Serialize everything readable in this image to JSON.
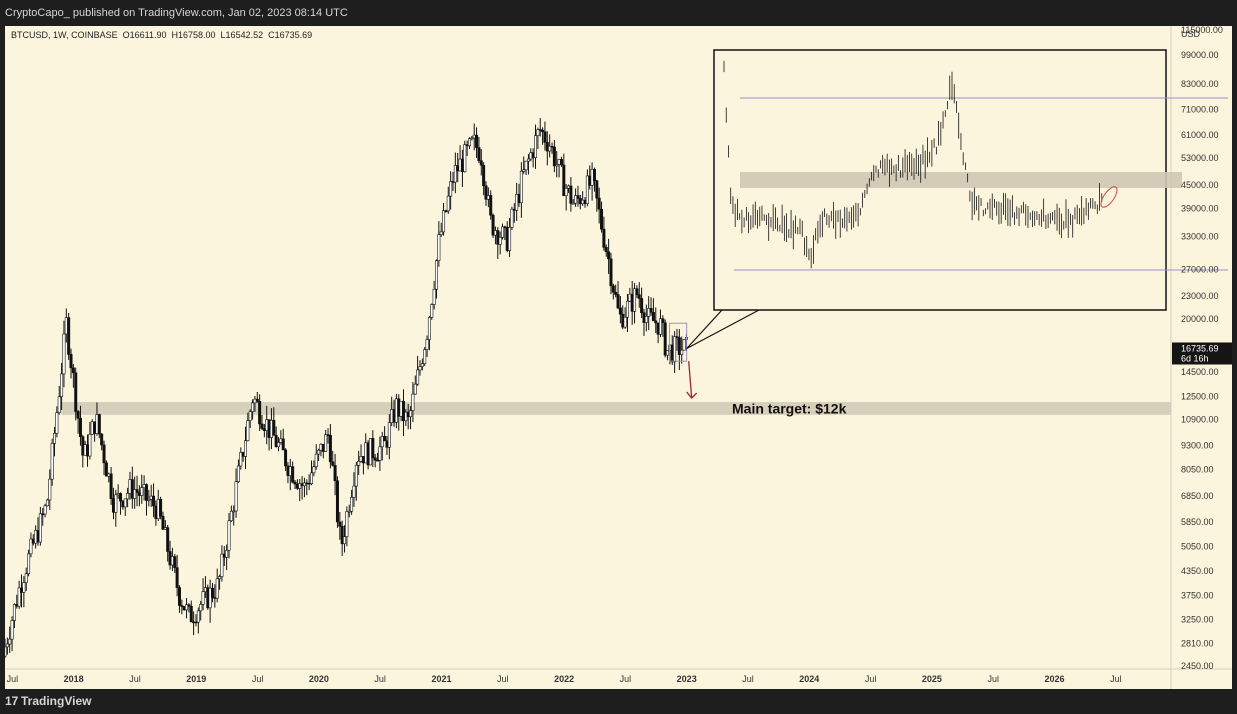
{
  "header": {
    "published_line": "CryptoCapo_ published on TradingView.com, Jan 02, 2023 08:14 UTC"
  },
  "footer": {
    "brand": "TradingView",
    "logo_mark": "17"
  },
  "colors": {
    "background": "#fcf5dd",
    "candle_up": "#ffffff",
    "candle_down": "#111111",
    "zone": "#cfc8b5",
    "arrow": "#9e2626",
    "range_line": "#9a93c6"
  },
  "chart_data": {
    "type": "candlestick",
    "symbol": "BTCUSD",
    "interval": "1W",
    "exchange": "COINBASE",
    "legend": {
      "open": "O16611.90",
      "high": "H16758.00",
      "low": "L16542.52",
      "close": "C16735.69"
    },
    "currency": "USD",
    "y_scale": "log",
    "ylim": [
      2450,
      115000
    ],
    "price_ticks": [
      115000,
      99000,
      83000,
      71000,
      61000,
      53000,
      45000,
      39000,
      33000,
      27000,
      23000,
      20000,
      14500,
      12500,
      10900,
      9300,
      8050,
      6850,
      5850,
      5050,
      4350,
      3750,
      3250,
      2810,
      2450
    ],
    "price_tick_labels": [
      "115000.00",
      "99000.00",
      "83000.00",
      "71000.00",
      "61000.00",
      "53000.00",
      "45000.00",
      "39000.00",
      "33000.00",
      "27000.00",
      "23000.00",
      "20000.00",
      "14500.00",
      "12500.00",
      "10900.00",
      "9300.00",
      "8050.00",
      "6850.00",
      "5850.00",
      "5050.00",
      "4350.00",
      "3750.00",
      "3250.00",
      "2810.00",
      "2450.00"
    ],
    "current_price": {
      "value": 16735.69,
      "label": "16735.69",
      "countdown": "6d 16h"
    },
    "time_labels": [
      "Jul",
      "2018",
      "Jul",
      "2019",
      "Jul",
      "2020",
      "Jul",
      "2021",
      "Jul",
      "2022",
      "Jul",
      "2023",
      "Jul",
      "2024",
      "Jul",
      "2025",
      "Jul",
      "2026",
      "Jul"
    ],
    "time_label_years": [
      2017.5,
      2018.0,
      2018.5,
      2019.0,
      2019.5,
      2020.0,
      2020.5,
      2021.0,
      2021.5,
      2022.0,
      2022.5,
      2023.0,
      2023.5,
      2024.0,
      2024.5,
      2025.0,
      2025.5,
      2026.0,
      2026.5
    ],
    "xlim_years": [
      2017.44,
      2026.95
    ],
    "key_points": [
      {
        "t": 2017.44,
        "p": 2600
      },
      {
        "t": 2017.6,
        "p": 4200
      },
      {
        "t": 2017.8,
        "p": 6500
      },
      {
        "t": 2017.96,
        "p": 19500
      },
      {
        "t": 2018.1,
        "p": 8500
      },
      {
        "t": 2018.2,
        "p": 11000
      },
      {
        "t": 2018.35,
        "p": 6600
      },
      {
        "t": 2018.5,
        "p": 7200
      },
      {
        "t": 2018.7,
        "p": 6400
      },
      {
        "t": 2018.88,
        "p": 3800
      },
      {
        "t": 2018.96,
        "p": 3300
      },
      {
        "t": 2019.2,
        "p": 4000
      },
      {
        "t": 2019.48,
        "p": 12500
      },
      {
        "t": 2019.6,
        "p": 10500
      },
      {
        "t": 2019.78,
        "p": 8200
      },
      {
        "t": 2019.9,
        "p": 7200
      },
      {
        "t": 2020.1,
        "p": 10000
      },
      {
        "t": 2020.2,
        "p": 5000
      },
      {
        "t": 2020.33,
        "p": 8800
      },
      {
        "t": 2020.55,
        "p": 9200
      },
      {
        "t": 2020.65,
        "p": 11800
      },
      {
        "t": 2020.75,
        "p": 10700
      },
      {
        "t": 2020.9,
        "p": 18500
      },
      {
        "t": 2021.0,
        "p": 32000
      },
      {
        "t": 2021.12,
        "p": 48000
      },
      {
        "t": 2021.28,
        "p": 58000
      },
      {
        "t": 2021.34,
        "p": 55000
      },
      {
        "t": 2021.42,
        "p": 36000
      },
      {
        "t": 2021.55,
        "p": 32000
      },
      {
        "t": 2021.68,
        "p": 47000
      },
      {
        "t": 2021.82,
        "p": 63000
      },
      {
        "t": 2021.9,
        "p": 58000
      },
      {
        "t": 2022.0,
        "p": 47000
      },
      {
        "t": 2022.1,
        "p": 40000
      },
      {
        "t": 2022.25,
        "p": 46000
      },
      {
        "t": 2022.38,
        "p": 29000
      },
      {
        "t": 2022.47,
        "p": 20000
      },
      {
        "t": 2022.62,
        "p": 23500
      },
      {
        "t": 2022.7,
        "p": 20000
      },
      {
        "t": 2022.8,
        "p": 19500
      },
      {
        "t": 2022.86,
        "p": 16500
      },
      {
        "t": 2022.95,
        "p": 16800
      },
      {
        "t": 2023.0,
        "p": 16735.69
      }
    ],
    "support_zone": {
      "low": 11200,
      "high": 12100
    },
    "annotation": "Main target: $12k",
    "inset": {
      "description_text": "",
      "zone_label": ""
    }
  }
}
